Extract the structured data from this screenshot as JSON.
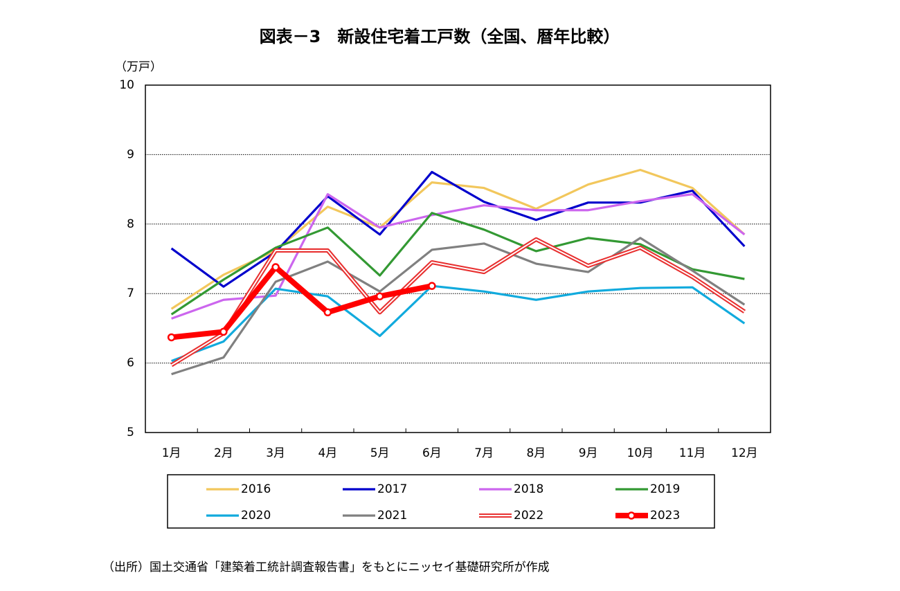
{
  "chart_data": {
    "type": "line",
    "title": "図表－3　新設住宅着工戸数（全国、暦年比較）",
    "y_label": "（万戸）",
    "source": "（出所）国土交通省「建築着工統計調査報告書」をもとにニッセイ基礎研究所が作成",
    "categories": [
      "1月",
      "2月",
      "3月",
      "4月",
      "5月",
      "6月",
      "7月",
      "8月",
      "9月",
      "10月",
      "11月",
      "12月"
    ],
    "ylim": [
      5,
      10
    ],
    "yticks": [
      5,
      6,
      7,
      8,
      9,
      10
    ],
    "grid": true,
    "series": [
      {
        "name": "2016",
        "color": "#f2c75c",
        "values": [
          6.78,
          7.27,
          7.62,
          8.25,
          7.95,
          8.6,
          8.52,
          8.22,
          8.57,
          8.78,
          8.52,
          7.85
        ]
      },
      {
        "name": "2017",
        "color": "#0000cc",
        "values": [
          7.65,
          7.1,
          7.6,
          8.4,
          7.85,
          8.75,
          8.32,
          8.06,
          8.31,
          8.31,
          8.48,
          7.68
        ]
      },
      {
        "name": "2018",
        "color": "#cc66ee",
        "values": [
          6.64,
          6.91,
          6.97,
          8.43,
          7.95,
          8.13,
          8.27,
          8.2,
          8.2,
          8.33,
          8.43,
          7.85
        ]
      },
      {
        "name": "2019",
        "color": "#339933",
        "values": [
          6.7,
          7.2,
          7.66,
          7.95,
          7.26,
          8.16,
          7.92,
          7.61,
          7.8,
          7.71,
          7.35,
          7.21
        ]
      },
      {
        "name": "2020",
        "color": "#11aadd",
        "values": [
          6.03,
          6.31,
          7.07,
          6.96,
          6.39,
          7.11,
          7.03,
          6.91,
          7.03,
          7.08,
          7.09,
          6.57
        ]
      },
      {
        "name": "2021",
        "color": "#808080",
        "values": [
          5.84,
          6.08,
          7.17,
          7.46,
          7.03,
          7.63,
          7.72,
          7.43,
          7.31,
          7.8,
          7.33,
          6.84
        ]
      },
      {
        "name": "2022",
        "color": "#e83030",
        "style": "double",
        "values": [
          5.97,
          6.43,
          7.62,
          7.62,
          6.73,
          7.45,
          7.31,
          7.78,
          7.4,
          7.66,
          7.24,
          6.74
        ]
      },
      {
        "name": "2023",
        "color": "#ff0000",
        "style": "bold-markers",
        "values": [
          6.37,
          6.45,
          7.38,
          6.73,
          6.96,
          7.11,
          null,
          null,
          null,
          null,
          null,
          null
        ]
      }
    ]
  }
}
